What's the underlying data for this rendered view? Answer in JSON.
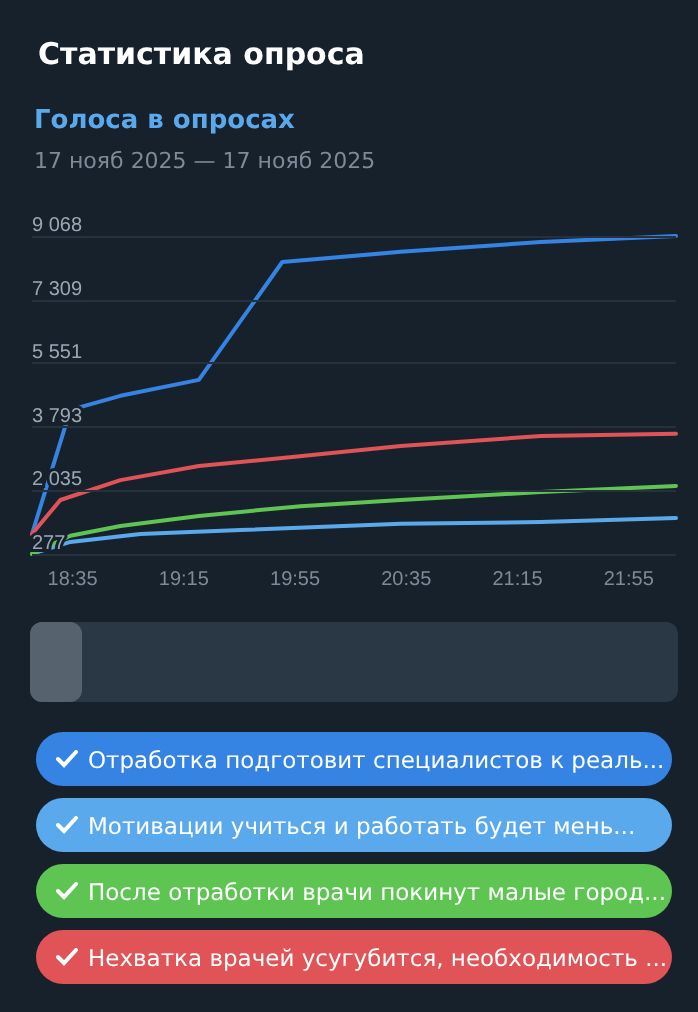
{
  "chart_data": {
    "type": "line",
    "title": "Статистика опроса",
    "subtitle": "Голоса в опросах",
    "annotations": [
      "17 нояб 2025 — 17 нояб 2025"
    ],
    "x": [
      18.34,
      18.51,
      18.57,
      18.87,
      18.99,
      19.34,
      19.59,
      19.84,
      19.95,
      20.55,
      21.39,
      22.2
    ],
    "series": [
      {
        "name": "Отработка подготовит специалистов к реаль...",
        "color": "#3584e4",
        "values": [
          830,
          null,
          4260,
          4650,
          null,
          5090,
          null,
          8350,
          null,
          8630,
          8900,
          9068
        ]
      },
      {
        "name": "Мотивации учиться и работать будет мень...",
        "color": "#5aa9ec",
        "values": [
          280,
          null,
          610,
          null,
          830,
          null,
          940,
          null,
          null,
          1110,
          1160,
          1270
        ]
      },
      {
        "name": "После отработки врачи покинут малые город...",
        "color": "#5ec552",
        "values": [
          280,
          null,
          780,
          1050,
          null,
          1330,
          null,
          null,
          1600,
          1770,
          1990,
          2160
        ]
      },
      {
        "name": "Нехватка врачей усугубится, необходимость ...",
        "color": "#e05356",
        "values": [
          830,
          1770,
          null,
          2320,
          null,
          2710,
          null,
          2930,
          null,
          3260,
          3540,
          3600
        ]
      }
    ],
    "xlim": [
      18.34,
      22.2
    ],
    "xticks": [
      {
        "value": 18.5833,
        "label": "18:35"
      },
      {
        "value": 19.25,
        "label": "19:15"
      },
      {
        "value": 19.9167,
        "label": "19:55"
      },
      {
        "value": 20.5833,
        "label": "20:35"
      },
      {
        "value": 21.25,
        "label": "21:15"
      },
      {
        "value": 21.9167,
        "label": "21:55"
      }
    ],
    "ylim": [
      277,
      9068
    ],
    "yticks": [
      {
        "value": 277,
        "label": "277"
      },
      {
        "value": 2035,
        "label": "2 035"
      },
      {
        "value": 3793,
        "label": "3 793"
      },
      {
        "value": 5551,
        "label": "5 551"
      },
      {
        "value": 7309,
        "label": "7 309"
      },
      {
        "value": 9068,
        "label": "9 068"
      }
    ],
    "grid": "y",
    "legend": "bottom",
    "marker": "none",
    "line_style": "solid"
  }
}
